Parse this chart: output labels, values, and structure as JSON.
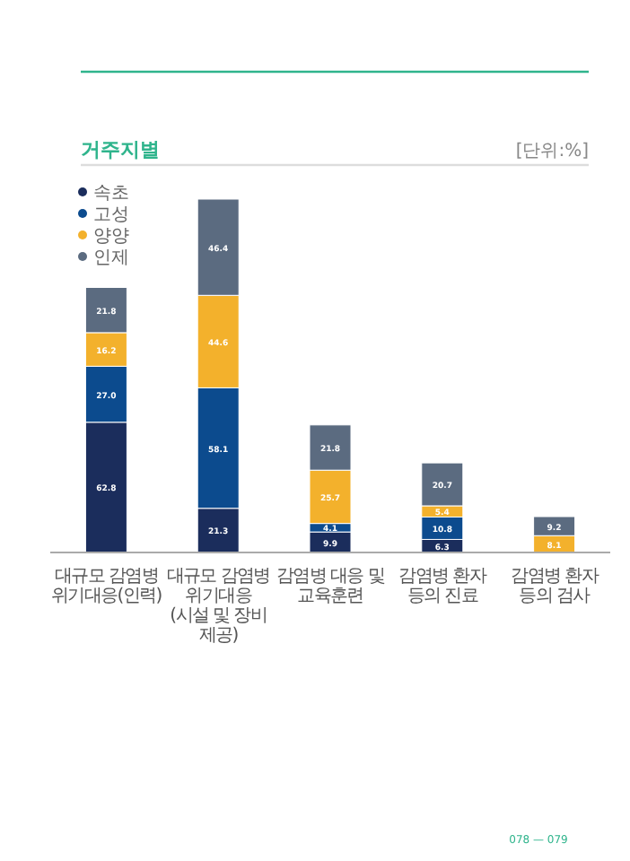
{
  "chart_data": {
    "type": "bar",
    "stacked": true,
    "title": "거주지별",
    "subtitle": "[단위:%]",
    "categories": [
      "대규모 감염병\n위기대응(인력)",
      "대규모 감염병 위기대응\n(시설 및 장비 제공)",
      "감염병 대응 및\n교육훈련",
      "감염병 환자\n등의 진료",
      "감염병 환자\n등의 검사"
    ],
    "series": [
      {
        "name": "속초",
        "color": "#1b2d5c",
        "values": [
          62.8,
          21.3,
          9.9,
          6.3,
          null
        ],
        "value_labels": [
          "62.8",
          "21.3",
          "9.9",
          "6.3",
          null
        ]
      },
      {
        "name": "고성",
        "color": "#0c4b8e",
        "values": [
          27.0,
          58.1,
          4.1,
          10.8,
          null
        ],
        "value_labels": [
          "27.0",
          "58.1",
          "4.1",
          "10.8",
          null
        ]
      },
      {
        "name": "양양",
        "color": "#f3b12c",
        "values": [
          16.2,
          44.6,
          25.7,
          5.4,
          8.1
        ],
        "value_labels": [
          "16.2",
          "44.6",
          "25.7",
          "5.4",
          "8.1"
        ]
      },
      {
        "name": "인제",
        "color": "#5b6b80",
        "values": [
          21.8,
          46.4,
          21.8,
          20.7,
          9.2
        ],
        "value_labels": [
          "21.8",
          "46.4",
          "21.8",
          "20.7",
          "9.2"
        ]
      }
    ],
    "legend": "top left",
    "annotations": [
      "078 — 079"
    ]
  }
}
